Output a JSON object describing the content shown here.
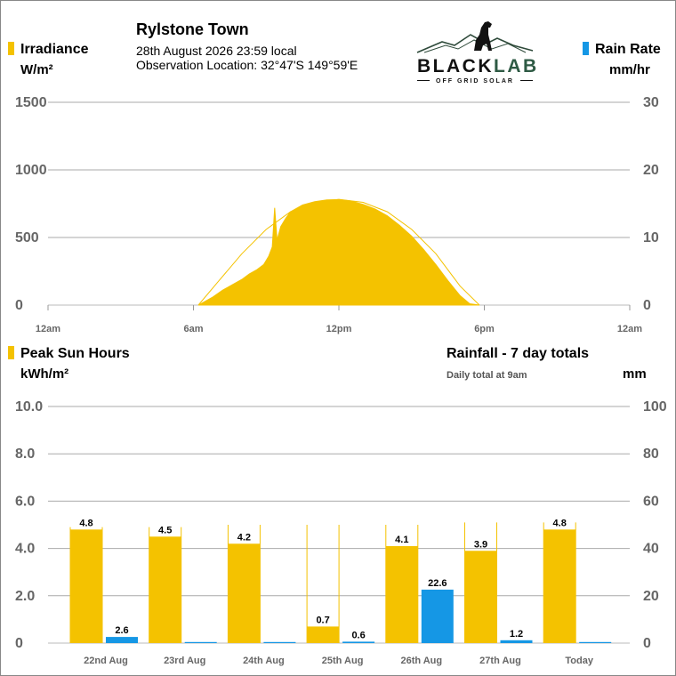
{
  "header": {
    "site": "Rylstone Town",
    "datetime": "28th August 2026  23:59 local",
    "location": "Observation Location: 32°47'S 149°59'E"
  },
  "logo": {
    "brand_left": "BLACK",
    "brand_right": "LAB",
    "tagline": "OFF GRID SOLAR"
  },
  "colors": {
    "irradiance": "#f4c200",
    "rain": "#1597e5",
    "grid": "#a9a9a9",
    "axis_text": "#666666"
  },
  "top_chart": {
    "left_title": "Irradiance",
    "left_unit": "W/m²",
    "right_title": "Rain Rate",
    "right_unit": "mm/hr",
    "left_ticks": [
      "1500",
      "1000",
      "500",
      "0"
    ],
    "right_ticks": [
      "30",
      "20",
      "10",
      "0"
    ],
    "x_ticks": [
      "12am",
      "6am",
      "12pm",
      "6pm",
      "12am"
    ]
  },
  "bottom_chart": {
    "left_title": "Peak Sun Hours",
    "left_unit": "kWh/m²",
    "right_title": "Rainfall - 7 day totals",
    "right_note": "Daily total at 9am",
    "right_unit": "mm",
    "left_ticks": [
      "10.0",
      "8.0",
      "6.0",
      "4.0",
      "2.0",
      "0"
    ],
    "right_ticks": [
      "100",
      "80",
      "60",
      "40",
      "20",
      "0"
    ]
  },
  "chart_data": [
    {
      "type": "area",
      "ylabel": "W/m²",
      "xlim_hours": [
        0,
        24
      ],
      "ylim": [
        0,
        1500
      ],
      "y2label": "mm/hr",
      "y2lim": [
        0,
        30
      ],
      "series": [
        {
          "name": "Irradiance",
          "x_hours": [
            6.2,
            6.8,
            7.2,
            7.6,
            8.0,
            8.3,
            8.6,
            8.9,
            9.1,
            9.25,
            9.35,
            9.45,
            9.6,
            9.8,
            10.0,
            10.5,
            11.0,
            11.5,
            12.0,
            12.5,
            13.0,
            13.5,
            14.0,
            14.5,
            15.0,
            15.5,
            16.0,
            16.5,
            17.0,
            17.4,
            17.8
          ],
          "values": [
            0,
            60,
            110,
            150,
            190,
            230,
            260,
            300,
            360,
            430,
            720,
            480,
            580,
            640,
            690,
            740,
            765,
            778,
            780,
            770,
            745,
            710,
            660,
            590,
            510,
            410,
            300,
            180,
            70,
            10,
            0
          ]
        },
        {
          "name": "Clear sky",
          "x_hours": [
            6.2,
            7.0,
            8.0,
            9.0,
            10.0,
            11.0,
            12.0,
            13.0,
            14.0,
            15.0,
            16.0,
            17.0,
            17.8
          ],
          "values": [
            0,
            170,
            380,
            560,
            690,
            760,
            782,
            760,
            690,
            560,
            380,
            140,
            0
          ]
        }
      ],
      "rain_rate": []
    },
    {
      "type": "bar",
      "categories": [
        "22nd Aug",
        "23rd Aug",
        "24th Aug",
        "25th Aug",
        "26th Aug",
        "27th Aug",
        "Today"
      ],
      "ylabel": "kWh/m²",
      "ylim": [
        0,
        10
      ],
      "y2label": "mm",
      "y2lim": [
        0,
        100
      ],
      "series": [
        {
          "name": "Peak Sun Hours",
          "values": [
            4.8,
            4.5,
            4.2,
            0.7,
            4.1,
            3.9,
            4.8
          ],
          "clear_sky": [
            4.9,
            4.9,
            5.0,
            5.0,
            5.0,
            5.1,
            5.1
          ]
        },
        {
          "name": "Rainfall",
          "values": [
            2.6,
            0,
            0,
            0.6,
            22.6,
            1.2,
            0
          ]
        }
      ],
      "labels": {
        "sun": [
          "4.8",
          "4.5",
          "4.2",
          "0.7",
          "4.1",
          "3.9",
          "4.8"
        ],
        "rain": [
          "2.6",
          "",
          "",
          "0.6",
          "22.6",
          "1.2",
          ""
        ]
      }
    }
  ]
}
